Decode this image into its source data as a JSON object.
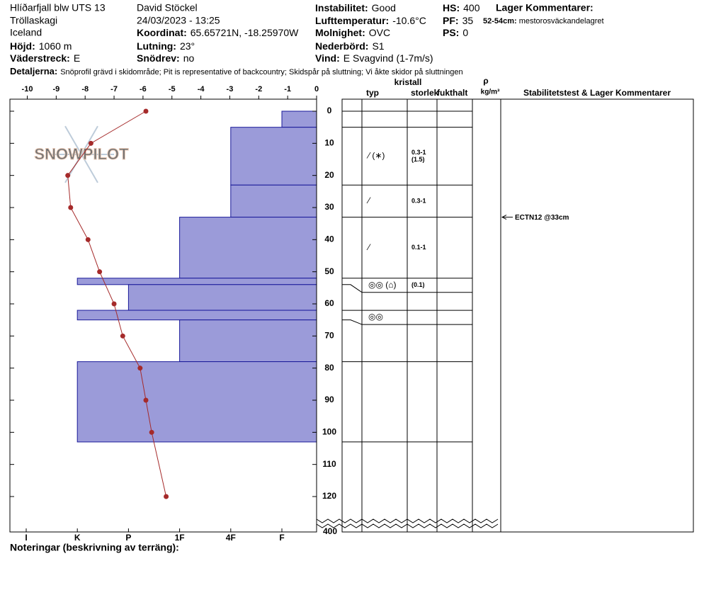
{
  "header": {
    "columns": [
      [
        {
          "text": "Hlíðarfjall blw UTS 13"
        },
        {
          "text": "Tröllaskagi"
        },
        {
          "text": "Iceland"
        },
        {
          "label": "Höjd:",
          "value": "1060 m"
        },
        {
          "label": "Väderstreck:",
          "value": "E"
        }
      ],
      [
        {
          "text": "David Stöckel"
        },
        {
          "text": "24/03/2023 - 13:25"
        },
        {
          "label": "Koordinat:",
          "value": "65.65721N, -18.25970W"
        },
        {
          "label": "Lutning:",
          "value": "23°"
        },
        {
          "label": "Snödrev:",
          "value": "no"
        }
      ],
      [
        {
          "label": "Instabilitet:",
          "value": "Good"
        },
        {
          "label": "Lufttemperatur:",
          "value": "-10.6°C"
        },
        {
          "label": "Molnighet:",
          "value": "OVC"
        },
        {
          "label": "Nederbörd:",
          "value": "S1"
        },
        {
          "label": "Vind:",
          "value": "E Svagvind (1-7m/s)"
        }
      ],
      [
        {
          "label": "HS:",
          "value": "400"
        },
        {
          "label": "PF:",
          "value": "35"
        },
        {
          "label": "PS:",
          "value": "0"
        }
      ]
    ],
    "layer_comments": {
      "title": "Lager Kommentarer:",
      "items": [
        {
          "label": "52-54cm:",
          "value": "mestorosväckandelagret"
        }
      ]
    },
    "details": {
      "label": "Detaljerna:",
      "value": "Snöprofil grävd i skidområde;  Pit is representative of backcountry;  Skidspår på sluttning;  Vi åkte skidor på sluttningen"
    }
  },
  "logo": "SNOWPILOT",
  "notes_label": "Noteringar (beskrivning av terräng):",
  "chart_data": {
    "type": "snowprofile",
    "xlim": [
      -10.6,
      0
    ],
    "xticks": [
      -10,
      -9,
      -8,
      -7,
      -6,
      -5,
      -4,
      -3,
      -2,
      -1,
      0
    ],
    "ylim": [
      0,
      120
    ],
    "yticks": [
      0,
      10,
      20,
      30,
      40,
      50,
      60,
      70,
      80,
      90,
      100,
      110,
      120
    ],
    "bottom_tick": 400,
    "hardness_scale": [
      "I",
      "K",
      "P",
      "1F",
      "4F",
      "F"
    ],
    "temperature": {
      "depth": [
        0,
        10,
        20,
        30,
        40,
        50,
        60,
        70,
        80,
        90,
        100,
        120
      ],
      "values": [
        -5.9,
        -7.8,
        -8.6,
        -8.5,
        -7.9,
        -7.5,
        -7.0,
        -6.7,
        -6.1,
        -5.9,
        -5.7,
        -5.2
      ],
      "color": "#a52a2a"
    },
    "layers": {
      "color": "#9b9bd9",
      "top": [
        0,
        5,
        23,
        33,
        52,
        54,
        62,
        65,
        78
      ],
      "bottom": [
        5,
        23,
        33,
        52,
        54,
        62,
        65,
        78,
        103
      ],
      "hardness": [
        "F",
        "4F",
        "4F",
        "1F",
        "K",
        "P",
        "K",
        "1F",
        "K"
      ],
      "grain": [
        null,
        "⁄ (∗)",
        "⁄",
        "⁄",
        "◎◎ (⌂)",
        null,
        "◎◎",
        null,
        null
      ],
      "size": [
        [],
        [
          "0.3-1",
          "(1.5)"
        ],
        [
          "0.3-1"
        ],
        [
          "0.1-1"
        ],
        [
          "(0.1)"
        ],
        [],
        [],
        [],
        []
      ]
    },
    "column_headers": {
      "type": "typ",
      "crystal": "kristall",
      "size": "storlek",
      "moisture": "fukthalt",
      "rho": "ρ",
      "density_unit": "kg/m³",
      "comments": "Stabilitetstest & Lager Kommentarer"
    },
    "stability": {
      "depth": 33,
      "label": "ECTN12 @33cm"
    }
  }
}
